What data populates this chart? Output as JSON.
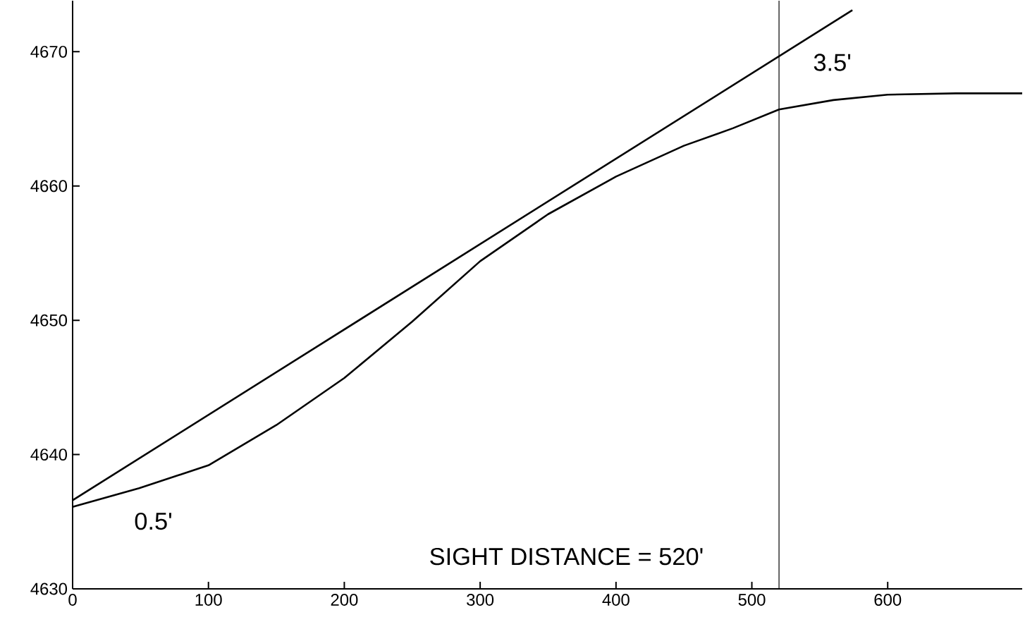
{
  "chart_data": {
    "type": "line",
    "x": [
      0,
      49,
      100,
      150,
      200,
      250,
      300,
      350,
      400,
      450,
      486,
      520,
      560,
      600,
      650,
      699
    ],
    "series": [
      {
        "color": "#000000",
        "values": [
          4636.1,
          4637.5,
          4639.2,
          4642.2,
          4645.7,
          4649.9,
          4654.4,
          4657.9,
          4660.7,
          4663.0,
          4664.3,
          4665.7,
          4666.4,
          4666.8,
          4666.9,
          4666.9
        ]
      },
      {
        "color": "#000000",
        "x": [
          0,
          574
        ],
        "values": [
          4636.6,
          4673.1
        ]
      }
    ],
    "xlim": [
      0,
      699
    ],
    "ylim": [
      4630,
      4673.8
    ],
    "xticks": [
      0,
      100,
      200,
      300,
      400,
      500,
      600
    ],
    "yticks": [
      4630,
      4640,
      4650,
      4660,
      4670
    ],
    "grid": false,
    "marker": "none",
    "line_style": "solid",
    "ref_lines": [
      {
        "axis": "x",
        "value": 520,
        "color": "#000000"
      }
    ],
    "annotations": [
      "3.5'",
      "0.5'",
      "SIGHT DISTANCE = 520'"
    ]
  }
}
